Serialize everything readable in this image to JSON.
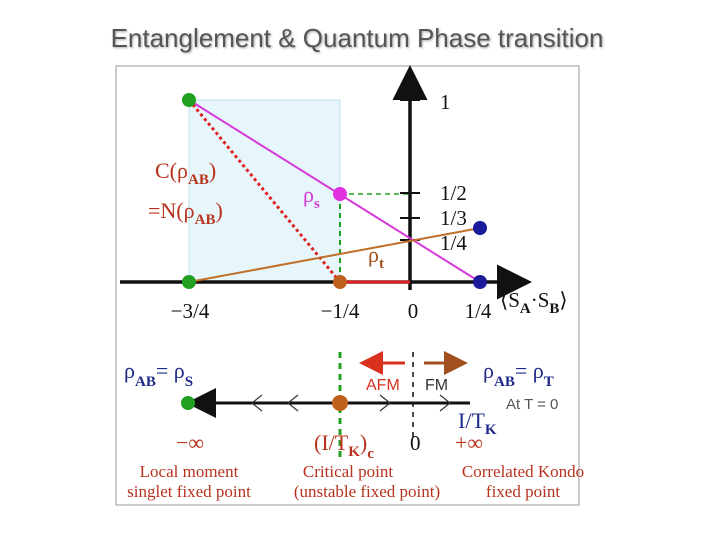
{
  "header": {
    "title": "Entanglement & Quantum Phase transition"
  },
  "upper_plot": {
    "y_ticks": [
      "1",
      "1/2",
      "1/3",
      "1/4"
    ],
    "x_ticks": [
      "−3/4",
      "−1/4",
      "0",
      "1/4"
    ],
    "x_axis_label": [
      "⟨S",
      "A",
      "·S",
      "B",
      "⟩"
    ],
    "concurrence_label": {
      "line1": [
        "C(ρ",
        "AB",
        ")"
      ],
      "line2": [
        "=N(ρ",
        "AB",
        ")"
      ]
    },
    "rho_s": [
      "ρ",
      "s"
    ],
    "rho_t": [
      "ρ",
      "t"
    ]
  },
  "lower_plot": {
    "left_label": [
      "ρ",
      "AB",
      "= ρ",
      "S"
    ],
    "right_label": [
      "ρ",
      "AB",
      "= ρ",
      "T"
    ],
    "afm": "AFM",
    "fm": "FM",
    "at_t0": "At T = 0",
    "axis_label": [
      "I/T",
      "K"
    ],
    "tick_minus_inf": "−∞",
    "tick_critical": [
      "(I/T",
      "K",
      ")",
      "c"
    ],
    "tick_zero": "0",
    "tick_plus_inf": "+∞",
    "points": [
      {
        "line1": "Local moment",
        "line2": "singlet fixed point"
      },
      {
        "line1": "Critical point",
        "line2": "(unstable fixed point)"
      },
      {
        "line1": "Correlated Kondo",
        "line2": "fixed point"
      }
    ]
  }
}
